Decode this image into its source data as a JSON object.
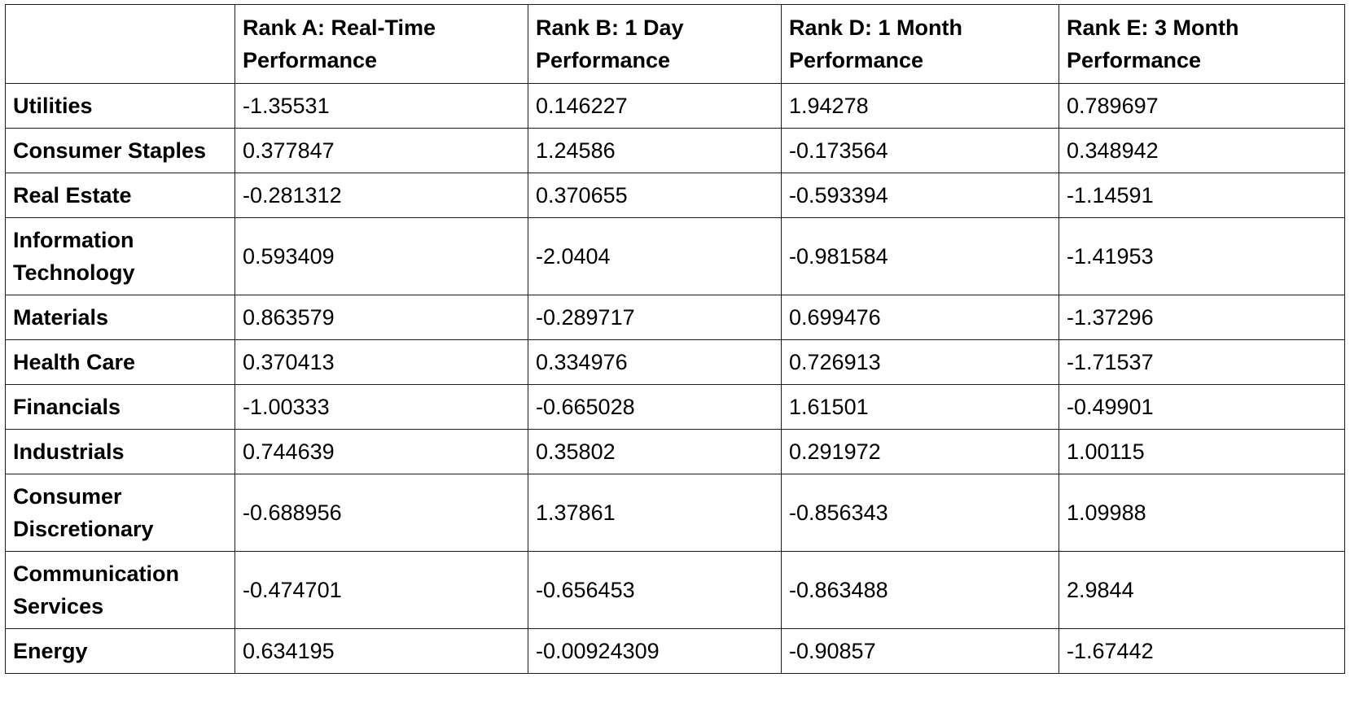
{
  "table": {
    "columns": [
      "",
      "Rank A: Real-Time Performance",
      "Rank B: 1 Day Performance",
      "Rank D: 1 Month Performance",
      "Rank E: 3 Month Performance"
    ],
    "rows": [
      {
        "sector": "Utilities",
        "values": [
          "-1.35531",
          "0.146227",
          "1.94278",
          "0.789697"
        ]
      },
      {
        "sector": "Consumer Staples",
        "values": [
          "0.377847",
          "1.24586",
          "-0.173564",
          "0.348942"
        ]
      },
      {
        "sector": "Real Estate",
        "values": [
          "-0.281312",
          "0.370655",
          "-0.593394",
          "-1.14591"
        ]
      },
      {
        "sector": "Information Technology",
        "values": [
          "0.593409",
          "-2.0404",
          "-0.981584",
          "-1.41953"
        ]
      },
      {
        "sector": "Materials",
        "values": [
          "0.863579",
          "-0.289717",
          "0.699476",
          "-1.37296"
        ]
      },
      {
        "sector": "Health Care",
        "values": [
          "0.370413",
          "0.334976",
          "0.726913",
          "-1.71537"
        ]
      },
      {
        "sector": "Financials",
        "values": [
          "-1.00333",
          "-0.665028",
          "1.61501",
          "-0.49901"
        ]
      },
      {
        "sector": "Industrials",
        "values": [
          "0.744639",
          "0.35802",
          "0.291972",
          "1.00115"
        ]
      },
      {
        "sector": "Consumer Discretionary",
        "values": [
          "-0.688956",
          "1.37861",
          "-0.856343",
          "1.09988"
        ]
      },
      {
        "sector": "Communication Services",
        "values": [
          "-0.474701",
          "-0.656453",
          "-0.863488",
          "2.9844"
        ]
      },
      {
        "sector": "Energy",
        "values": [
          "0.634195",
          "-0.00924309",
          "-0.90857",
          "-1.67442"
        ]
      }
    ]
  }
}
